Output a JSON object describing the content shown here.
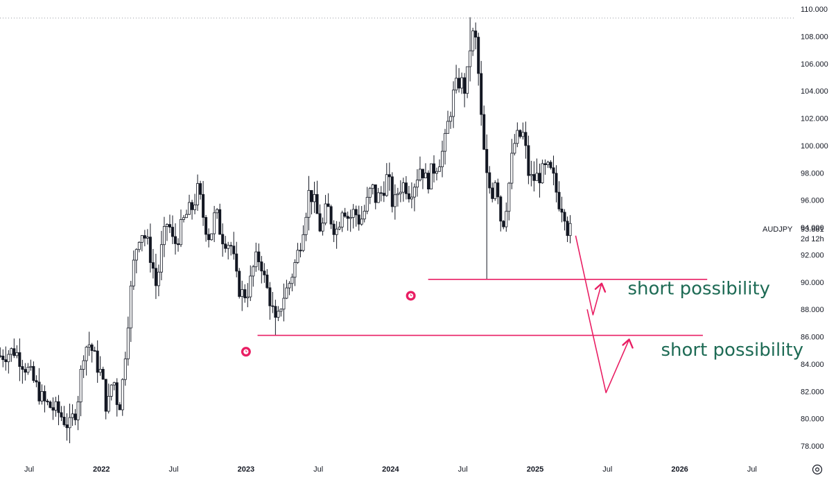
{
  "chart_data": {
    "type": "candlestick",
    "symbol": "AUDJPY",
    "last_price": 93.881,
    "last_price_label": "93.881",
    "countdown": "2d 12h",
    "y_axis": {
      "min": 77.0,
      "max": 110.6,
      "ticks": [
        "110.000",
        "108.000",
        "106.000",
        "104.000",
        "102.000",
        "100.000",
        "98.000",
        "96.000",
        "94.000",
        "92.000",
        "90.000",
        "88.000",
        "86.000",
        "84.000",
        "82.000",
        "80.000",
        "78.000"
      ]
    },
    "x_axis": {
      "ticks": [
        {
          "label": "Jul",
          "year": false,
          "t": 2021.5
        },
        {
          "label": "2022",
          "year": true,
          "t": 2022.0
        },
        {
          "label": "Jul",
          "year": false,
          "t": 2022.5
        },
        {
          "label": "2023",
          "year": true,
          "t": 2023.0
        },
        {
          "label": "Jul",
          "year": false,
          "t": 2023.5
        },
        {
          "label": "2024",
          "year": true,
          "t": 2024.0
        },
        {
          "label": "Jul",
          "year": false,
          "t": 2024.5
        },
        {
          "label": "2025",
          "year": true,
          "t": 2025.0
        },
        {
          "label": "Jul",
          "year": false,
          "t": 2025.5
        },
        {
          "label": "2026",
          "year": true,
          "t": 2026.0
        },
        {
          "label": "Jul",
          "year": false,
          "t": 2026.5
        }
      ]
    },
    "weekly_closes": [
      [
        2021.3,
        84.6
      ],
      [
        2021.4,
        85.0
      ],
      [
        2021.5,
        83.4
      ],
      [
        2021.6,
        81.2
      ],
      [
        2021.7,
        80.5
      ],
      [
        2021.78,
        79.4
      ],
      [
        2021.83,
        80.9
      ],
      [
        2021.88,
        85.2
      ],
      [
        2021.92,
        85.5
      ],
      [
        2021.96,
        84.2
      ],
      [
        2022.0,
        83.2
      ],
      [
        2022.04,
        80.5
      ],
      [
        2022.08,
        83.2
      ],
      [
        2022.12,
        80.6
      ],
      [
        2022.15,
        83.0
      ],
      [
        2022.19,
        88.0
      ],
      [
        2022.23,
        92.0
      ],
      [
        2022.27,
        93.9
      ],
      [
        2022.31,
        93.1
      ],
      [
        2022.35,
        91.5
      ],
      [
        2022.38,
        89.6
      ],
      [
        2022.42,
        92.7
      ],
      [
        2022.46,
        94.6
      ],
      [
        2022.5,
        92.6
      ],
      [
        2022.54,
        93.6
      ],
      [
        2022.58,
        94.8
      ],
      [
        2022.63,
        95.5
      ],
      [
        2022.67,
        96.8
      ],
      [
        2022.71,
        94.5
      ],
      [
        2022.75,
        93.2
      ],
      [
        2022.79,
        95.2
      ],
      [
        2022.83,
        93.4
      ],
      [
        2022.87,
        93.0
      ],
      [
        2022.9,
        92.6
      ],
      [
        2022.94,
        89.8
      ],
      [
        2022.98,
        89.0
      ],
      [
        2023.02,
        89.5
      ],
      [
        2023.06,
        91.5
      ],
      [
        2023.1,
        91.8
      ],
      [
        2023.13,
        90.0
      ],
      [
        2023.17,
        88.6
      ],
      [
        2023.21,
        86.6
      ],
      [
        2023.25,
        88.8
      ],
      [
        2023.29,
        89.6
      ],
      [
        2023.33,
        91.0
      ],
      [
        2023.37,
        92.6
      ],
      [
        2023.4,
        94.4
      ],
      [
        2023.44,
        96.8
      ],
      [
        2023.48,
        95.5
      ],
      [
        2023.52,
        93.6
      ],
      [
        2023.56,
        95.6
      ],
      [
        2023.6,
        94.2
      ],
      [
        2023.63,
        93.8
      ],
      [
        2023.67,
        95.8
      ],
      [
        2023.71,
        94.6
      ],
      [
        2023.75,
        95.2
      ],
      [
        2023.79,
        94.4
      ],
      [
        2023.83,
        95.5
      ],
      [
        2023.87,
        97.0
      ],
      [
        2023.9,
        96.0
      ],
      [
        2023.94,
        96.6
      ],
      [
        2023.98,
        97.8
      ],
      [
        2024.02,
        95.4
      ],
      [
        2024.06,
        97.0
      ],
      [
        2024.1,
        97.2
      ],
      [
        2024.13,
        96.6
      ],
      [
        2024.17,
        97.4
      ],
      [
        2024.21,
        98.6
      ],
      [
        2024.25,
        97.2
      ],
      [
        2024.29,
        98.2
      ],
      [
        2024.33,
        98.8
      ],
      [
        2024.37,
        99.8
      ],
      [
        2024.4,
        101.8
      ],
      [
        2024.44,
        104.0
      ],
      [
        2024.48,
        104.8
      ],
      [
        2024.52,
        104.0
      ],
      [
        2024.55,
        107.2
      ],
      [
        2024.58,
        108.5
      ],
      [
        2024.6,
        106.5
      ],
      [
        2024.63,
        101.4
      ],
      [
        2024.66,
        97.8
      ],
      [
        2024.7,
        96.4
      ],
      [
        2024.73,
        98.0
      ],
      [
        2024.77,
        93.8
      ],
      [
        2024.81,
        96.4
      ],
      [
        2024.85,
        100.0
      ],
      [
        2024.88,
        100.6
      ],
      [
        2024.92,
        100.8
      ],
      [
        2024.96,
        97.5
      ],
      [
        2025.0,
        97.6
      ],
      [
        2025.04,
        97.9
      ],
      [
        2025.08,
        98.3
      ],
      [
        2025.12,
        97.8
      ],
      [
        2025.16,
        96.0
      ],
      [
        2025.2,
        95.4
      ],
      [
        2025.23,
        93.5
      ],
      [
        2025.25,
        93.88
      ]
    ],
    "levels": [
      {
        "name": "upper-support",
        "value": 90.2,
        "t_start": 2024.26,
        "t_end": 2026.19,
        "color": "#e91e63"
      },
      {
        "name": "lower-support",
        "value": 86.1,
        "t_start": 2023.08,
        "t_end": 2026.16,
        "color": "#e91e63"
      }
    ],
    "annotations": [
      {
        "text": "short possibility",
        "anchor_t": 2025.64,
        "anchor_v": 89.1
      },
      {
        "text": "short possibility",
        "anchor_t": 2025.87,
        "anchor_v": 84.6
      }
    ],
    "projection_paths": [
      [
        [
          2025.28,
          93.4
        ],
        [
          2025.4,
          87.6
        ],
        [
          2025.46,
          89.9
        ]
      ],
      [
        [
          2025.36,
          88.0
        ],
        [
          2025.49,
          81.9
        ],
        [
          2025.65,
          85.8
        ]
      ]
    ],
    "alarm_markers": [
      {
        "t": 2024.14,
        "v": 89.0
      },
      {
        "t": 2023.0,
        "v": 84.9
      }
    ],
    "colors": {
      "candle_up": "#ffffff",
      "candle_down": "#131722",
      "level": "#e91e63",
      "annotation_text": "#1e6b55",
      "axis_text": "#131722"
    }
  }
}
